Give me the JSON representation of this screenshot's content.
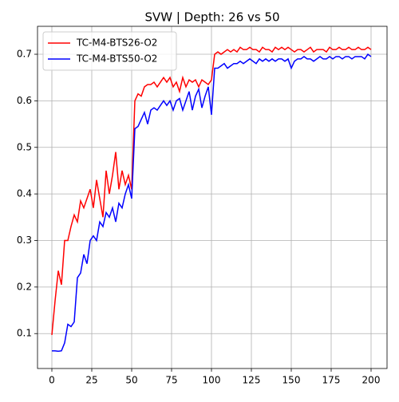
{
  "chart_data": {
    "type": "line",
    "title": "SVW | Depth: 26 vs 50",
    "x": [
      0,
      2,
      4,
      6,
      8,
      10,
      12,
      14,
      16,
      18,
      20,
      22,
      24,
      26,
      28,
      30,
      32,
      34,
      36,
      38,
      40,
      42,
      44,
      46,
      48,
      50,
      52,
      54,
      56,
      58,
      60,
      62,
      64,
      66,
      68,
      70,
      72,
      74,
      76,
      78,
      80,
      82,
      84,
      86,
      88,
      90,
      92,
      94,
      96,
      98,
      100,
      102,
      104,
      106,
      108,
      110,
      112,
      114,
      116,
      118,
      120,
      122,
      124,
      126,
      128,
      130,
      132,
      134,
      136,
      138,
      140,
      142,
      144,
      146,
      148,
      150,
      152,
      154,
      156,
      158,
      160,
      162,
      164,
      166,
      168,
      170,
      172,
      174,
      176,
      178,
      180,
      182,
      184,
      186,
      188,
      190,
      192,
      194,
      196,
      198,
      200
    ],
    "series": [
      {
        "name": "TC-M4-BTS26-O2",
        "color": "#ff0000",
        "values": [
          0.097,
          0.17,
          0.235,
          0.205,
          0.3,
          0.3,
          0.33,
          0.355,
          0.34,
          0.385,
          0.37,
          0.39,
          0.41,
          0.37,
          0.43,
          0.39,
          0.35,
          0.45,
          0.4,
          0.44,
          0.49,
          0.41,
          0.45,
          0.42,
          0.44,
          0.41,
          0.6,
          0.615,
          0.61,
          0.63,
          0.635,
          0.635,
          0.64,
          0.63,
          0.64,
          0.65,
          0.64,
          0.65,
          0.63,
          0.64,
          0.62,
          0.65,
          0.63,
          0.645,
          0.64,
          0.645,
          0.63,
          0.645,
          0.64,
          0.635,
          0.645,
          0.7,
          0.705,
          0.7,
          0.705,
          0.71,
          0.705,
          0.71,
          0.705,
          0.715,
          0.71,
          0.71,
          0.715,
          0.71,
          0.71,
          0.705,
          0.715,
          0.71,
          0.71,
          0.705,
          0.715,
          0.71,
          0.715,
          0.71,
          0.715,
          0.71,
          0.705,
          0.71,
          0.71,
          0.705,
          0.71,
          0.715,
          0.705,
          0.71,
          0.71,
          0.71,
          0.705,
          0.715,
          0.71,
          0.71,
          0.715,
          0.71,
          0.71,
          0.715,
          0.71,
          0.71,
          0.715,
          0.71,
          0.71,
          0.715,
          0.71
        ]
      },
      {
        "name": "TC-M4-BTS50-O2",
        "color": "#0000ff",
        "values": [
          0.063,
          0.063,
          0.062,
          0.063,
          0.08,
          0.12,
          0.115,
          0.125,
          0.22,
          0.23,
          0.27,
          0.25,
          0.3,
          0.31,
          0.3,
          0.34,
          0.33,
          0.36,
          0.35,
          0.37,
          0.34,
          0.38,
          0.37,
          0.4,
          0.42,
          0.39,
          0.54,
          0.545,
          0.56,
          0.575,
          0.55,
          0.58,
          0.585,
          0.58,
          0.59,
          0.6,
          0.59,
          0.6,
          0.58,
          0.6,
          0.605,
          0.58,
          0.6,
          0.62,
          0.58,
          0.61,
          0.625,
          0.585,
          0.61,
          0.63,
          0.57,
          0.67,
          0.67,
          0.675,
          0.68,
          0.67,
          0.675,
          0.68,
          0.68,
          0.685,
          0.68,
          0.685,
          0.69,
          0.685,
          0.68,
          0.69,
          0.685,
          0.69,
          0.685,
          0.69,
          0.685,
          0.69,
          0.69,
          0.685,
          0.69,
          0.67,
          0.685,
          0.69,
          0.69,
          0.695,
          0.69,
          0.69,
          0.685,
          0.69,
          0.695,
          0.69,
          0.69,
          0.695,
          0.69,
          0.695,
          0.695,
          0.69,
          0.695,
          0.695,
          0.69,
          0.695,
          0.695,
          0.695,
          0.69,
          0.7,
          0.695
        ]
      }
    ],
    "xlim": [
      -9,
      210
    ],
    "ylim": [
      0.025,
      0.76
    ],
    "xticks": [
      0,
      25,
      50,
      75,
      100,
      125,
      150,
      175,
      200
    ],
    "yticks": [
      0.1,
      0.2,
      0.3,
      0.4,
      0.5,
      0.6,
      0.7
    ],
    "grid": true,
    "legend": "upper left"
  }
}
